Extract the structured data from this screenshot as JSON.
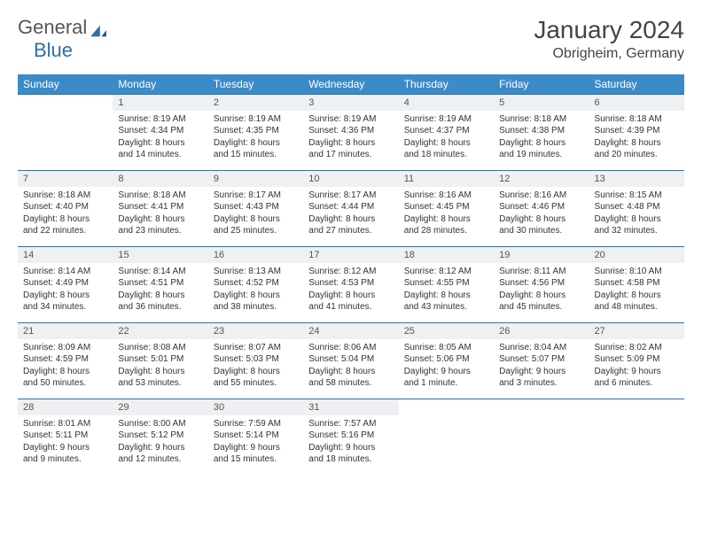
{
  "logo": {
    "text1": "General",
    "text2": "Blue",
    "color1": "#666666",
    "color2": "#2f6fa8"
  },
  "title": "January 2024",
  "location": "Obrigheim, Germany",
  "header_bg": "#3b8bc9",
  "daynum_bg": "#eef0f2",
  "rule_color": "#3b6ea0",
  "weekdays": [
    "Sunday",
    "Monday",
    "Tuesday",
    "Wednesday",
    "Thursday",
    "Friday",
    "Saturday"
  ],
  "weeks": [
    [
      null,
      {
        "n": "1",
        "sr": "Sunrise: 8:19 AM",
        "ss": "Sunset: 4:34 PM",
        "d1": "Daylight: 8 hours",
        "d2": "and 14 minutes."
      },
      {
        "n": "2",
        "sr": "Sunrise: 8:19 AM",
        "ss": "Sunset: 4:35 PM",
        "d1": "Daylight: 8 hours",
        "d2": "and 15 minutes."
      },
      {
        "n": "3",
        "sr": "Sunrise: 8:19 AM",
        "ss": "Sunset: 4:36 PM",
        "d1": "Daylight: 8 hours",
        "d2": "and 17 minutes."
      },
      {
        "n": "4",
        "sr": "Sunrise: 8:19 AM",
        "ss": "Sunset: 4:37 PM",
        "d1": "Daylight: 8 hours",
        "d2": "and 18 minutes."
      },
      {
        "n": "5",
        "sr": "Sunrise: 8:18 AM",
        "ss": "Sunset: 4:38 PM",
        "d1": "Daylight: 8 hours",
        "d2": "and 19 minutes."
      },
      {
        "n": "6",
        "sr": "Sunrise: 8:18 AM",
        "ss": "Sunset: 4:39 PM",
        "d1": "Daylight: 8 hours",
        "d2": "and 20 minutes."
      }
    ],
    [
      {
        "n": "7",
        "sr": "Sunrise: 8:18 AM",
        "ss": "Sunset: 4:40 PM",
        "d1": "Daylight: 8 hours",
        "d2": "and 22 minutes."
      },
      {
        "n": "8",
        "sr": "Sunrise: 8:18 AM",
        "ss": "Sunset: 4:41 PM",
        "d1": "Daylight: 8 hours",
        "d2": "and 23 minutes."
      },
      {
        "n": "9",
        "sr": "Sunrise: 8:17 AM",
        "ss": "Sunset: 4:43 PM",
        "d1": "Daylight: 8 hours",
        "d2": "and 25 minutes."
      },
      {
        "n": "10",
        "sr": "Sunrise: 8:17 AM",
        "ss": "Sunset: 4:44 PM",
        "d1": "Daylight: 8 hours",
        "d2": "and 27 minutes."
      },
      {
        "n": "11",
        "sr": "Sunrise: 8:16 AM",
        "ss": "Sunset: 4:45 PM",
        "d1": "Daylight: 8 hours",
        "d2": "and 28 minutes."
      },
      {
        "n": "12",
        "sr": "Sunrise: 8:16 AM",
        "ss": "Sunset: 4:46 PM",
        "d1": "Daylight: 8 hours",
        "d2": "and 30 minutes."
      },
      {
        "n": "13",
        "sr": "Sunrise: 8:15 AM",
        "ss": "Sunset: 4:48 PM",
        "d1": "Daylight: 8 hours",
        "d2": "and 32 minutes."
      }
    ],
    [
      {
        "n": "14",
        "sr": "Sunrise: 8:14 AM",
        "ss": "Sunset: 4:49 PM",
        "d1": "Daylight: 8 hours",
        "d2": "and 34 minutes."
      },
      {
        "n": "15",
        "sr": "Sunrise: 8:14 AM",
        "ss": "Sunset: 4:51 PM",
        "d1": "Daylight: 8 hours",
        "d2": "and 36 minutes."
      },
      {
        "n": "16",
        "sr": "Sunrise: 8:13 AM",
        "ss": "Sunset: 4:52 PM",
        "d1": "Daylight: 8 hours",
        "d2": "and 38 minutes."
      },
      {
        "n": "17",
        "sr": "Sunrise: 8:12 AM",
        "ss": "Sunset: 4:53 PM",
        "d1": "Daylight: 8 hours",
        "d2": "and 41 minutes."
      },
      {
        "n": "18",
        "sr": "Sunrise: 8:12 AM",
        "ss": "Sunset: 4:55 PM",
        "d1": "Daylight: 8 hours",
        "d2": "and 43 minutes."
      },
      {
        "n": "19",
        "sr": "Sunrise: 8:11 AM",
        "ss": "Sunset: 4:56 PM",
        "d1": "Daylight: 8 hours",
        "d2": "and 45 minutes."
      },
      {
        "n": "20",
        "sr": "Sunrise: 8:10 AM",
        "ss": "Sunset: 4:58 PM",
        "d1": "Daylight: 8 hours",
        "d2": "and 48 minutes."
      }
    ],
    [
      {
        "n": "21",
        "sr": "Sunrise: 8:09 AM",
        "ss": "Sunset: 4:59 PM",
        "d1": "Daylight: 8 hours",
        "d2": "and 50 minutes."
      },
      {
        "n": "22",
        "sr": "Sunrise: 8:08 AM",
        "ss": "Sunset: 5:01 PM",
        "d1": "Daylight: 8 hours",
        "d2": "and 53 minutes."
      },
      {
        "n": "23",
        "sr": "Sunrise: 8:07 AM",
        "ss": "Sunset: 5:03 PM",
        "d1": "Daylight: 8 hours",
        "d2": "and 55 minutes."
      },
      {
        "n": "24",
        "sr": "Sunrise: 8:06 AM",
        "ss": "Sunset: 5:04 PM",
        "d1": "Daylight: 8 hours",
        "d2": "and 58 minutes."
      },
      {
        "n": "25",
        "sr": "Sunrise: 8:05 AM",
        "ss": "Sunset: 5:06 PM",
        "d1": "Daylight: 9 hours",
        "d2": "and 1 minute."
      },
      {
        "n": "26",
        "sr": "Sunrise: 8:04 AM",
        "ss": "Sunset: 5:07 PM",
        "d1": "Daylight: 9 hours",
        "d2": "and 3 minutes."
      },
      {
        "n": "27",
        "sr": "Sunrise: 8:02 AM",
        "ss": "Sunset: 5:09 PM",
        "d1": "Daylight: 9 hours",
        "d2": "and 6 minutes."
      }
    ],
    [
      {
        "n": "28",
        "sr": "Sunrise: 8:01 AM",
        "ss": "Sunset: 5:11 PM",
        "d1": "Daylight: 9 hours",
        "d2": "and 9 minutes."
      },
      {
        "n": "29",
        "sr": "Sunrise: 8:00 AM",
        "ss": "Sunset: 5:12 PM",
        "d1": "Daylight: 9 hours",
        "d2": "and 12 minutes."
      },
      {
        "n": "30",
        "sr": "Sunrise: 7:59 AM",
        "ss": "Sunset: 5:14 PM",
        "d1": "Daylight: 9 hours",
        "d2": "and 15 minutes."
      },
      {
        "n": "31",
        "sr": "Sunrise: 7:57 AM",
        "ss": "Sunset: 5:16 PM",
        "d1": "Daylight: 9 hours",
        "d2": "and 18 minutes."
      },
      null,
      null,
      null
    ]
  ]
}
